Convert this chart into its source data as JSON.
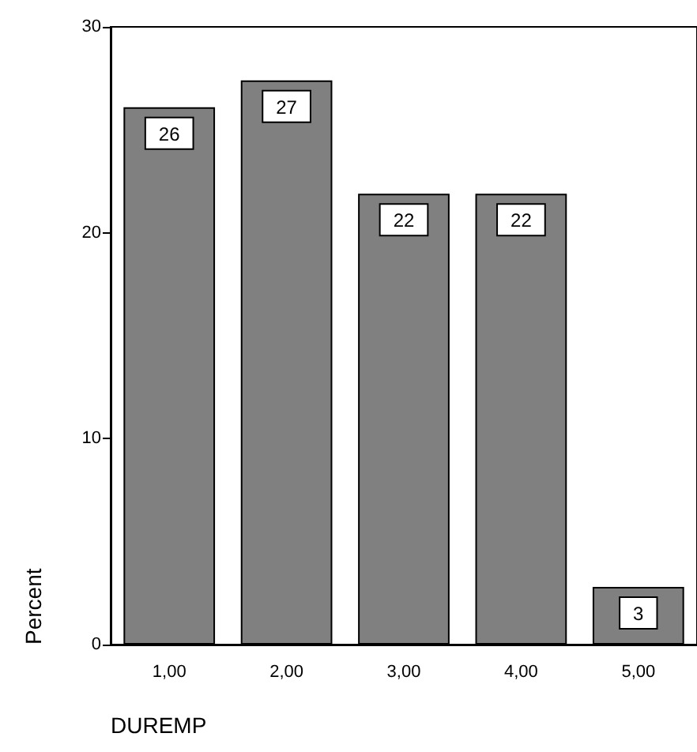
{
  "chart_data": {
    "type": "bar",
    "categories": [
      "1,00",
      "2,00",
      "3,00",
      "4,00",
      "5,00"
    ],
    "values": [
      26.1,
      27.4,
      21.9,
      21.9,
      2.8
    ],
    "value_labels": [
      "26",
      "27",
      "22",
      "22",
      "3"
    ],
    "color": "#808080",
    "ylim": [
      0,
      30
    ],
    "yticks": [
      0,
      10,
      20,
      30
    ],
    "ylabel": "Percent",
    "xlabel": "DUREMP",
    "grid": false
  }
}
